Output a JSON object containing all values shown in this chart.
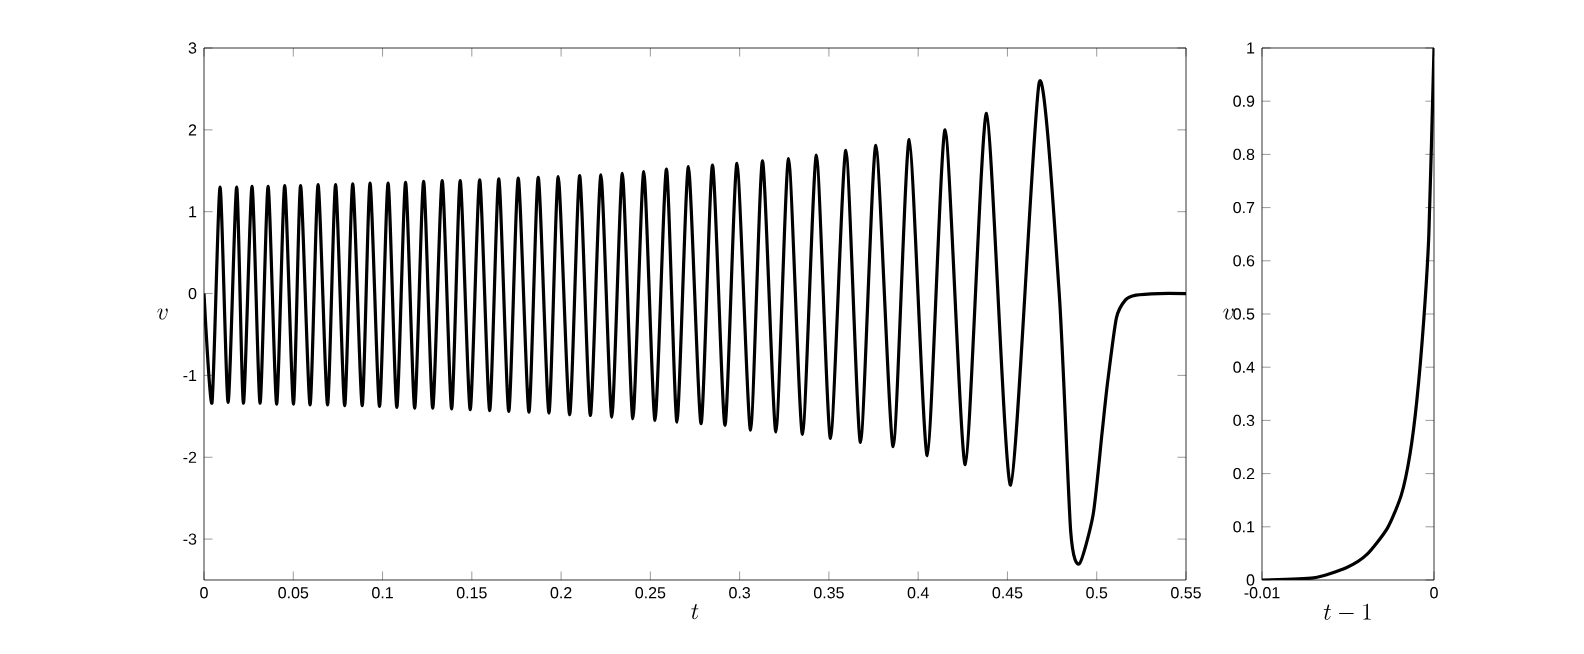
{
  "chart_data": [
    {
      "type": "line",
      "xlabel": "t",
      "ylabel": "v",
      "color": "#000000",
      "xlim": [
        0,
        0.55
      ],
      "ylim": [
        -3.5,
        3
      ],
      "xticks": [
        0,
        0.05,
        0.1,
        0.15,
        0.2,
        0.25,
        0.3,
        0.35,
        0.4,
        0.45,
        0.5,
        0.55
      ],
      "yticks": [
        -3,
        -2,
        -1,
        0,
        1,
        2,
        3
      ],
      "x": [
        0,
        0.0045,
        0.009,
        0.0135,
        0.0183,
        0.0221,
        0.0269,
        0.0314,
        0.0359,
        0.0407,
        0.0452,
        0.0501,
        0.0541,
        0.0594,
        0.0639,
        0.0692,
        0.0737,
        0.0788,
        0.0833,
        0.0886,
        0.093,
        0.0983,
        0.1031,
        0.108,
        0.1129,
        0.118,
        0.123,
        0.1281,
        0.1334,
        0.1387,
        0.1435,
        0.1491,
        0.1544,
        0.16,
        0.1651,
        0.1707,
        0.176,
        0.182,
        0.1872,
        0.1932,
        0.1984,
        0.2048,
        0.2104,
        0.2164,
        0.2223,
        0.2284,
        0.2343,
        0.2402,
        0.2463,
        0.2526,
        0.259,
        0.2649,
        0.2713,
        0.2784,
        0.2848,
        0.2918,
        0.2985,
        0.3061,
        0.3128,
        0.3203,
        0.3274,
        0.3352,
        0.343,
        0.3509,
        0.3595,
        0.3677,
        0.3763,
        0.386,
        0.395,
        0.4051,
        0.4151,
        0.4264,
        0.4383,
        0.4518,
        0.4678,
        0.479,
        0.4854,
        0.4903,
        0.498,
        0.503,
        0.506,
        0.511,
        0.516,
        0.522,
        0.535,
        0.55
      ],
      "values": [
        0,
        -1.33,
        1.3,
        -1.33,
        1.3,
        -1.34,
        1.31,
        -1.34,
        1.31,
        -1.35,
        1.32,
        -1.35,
        1.32,
        -1.36,
        1.33,
        -1.36,
        1.33,
        -1.37,
        1.34,
        -1.37,
        1.35,
        -1.38,
        1.35,
        -1.39,
        1.36,
        -1.4,
        1.37,
        -1.4,
        1.38,
        -1.41,
        1.38,
        -1.42,
        1.39,
        -1.43,
        1.4,
        -1.44,
        1.41,
        -1.45,
        1.42,
        -1.46,
        1.43,
        -1.48,
        1.44,
        -1.49,
        1.45,
        -1.51,
        1.47,
        -1.53,
        1.49,
        -1.55,
        1.52,
        -1.57,
        1.55,
        -1.59,
        1.57,
        -1.61,
        1.59,
        -1.67,
        1.62,
        -1.69,
        1.65,
        -1.72,
        1.69,
        -1.77,
        1.75,
        -1.82,
        1.81,
        -1.87,
        1.88,
        -1.98,
        2.0,
        -2.09,
        2.2,
        -2.34,
        2.58,
        0,
        -2.9,
        -3.3,
        -2.7,
        -1.7,
        -1.1,
        -0.3,
        -0.08,
        -0.02,
        0,
        0
      ]
    },
    {
      "type": "line",
      "xlabel": "t - 1",
      "ylabel": "v",
      "color": "#000000",
      "xlim": [
        -0.01,
        0
      ],
      "ylim": [
        0,
        1
      ],
      "xticks": [
        -0.01,
        0
      ],
      "yticks": [
        0,
        0.1,
        0.2,
        0.3,
        0.4,
        0.5,
        0.6,
        0.7,
        0.8,
        0.9,
        1
      ],
      "x": [
        -0.01,
        -0.007,
        -0.0051,
        -0.0039,
        -0.0027,
        -0.0019,
        -0.0014,
        -0.001,
        -0.0006,
        -0.0003,
        0
      ],
      "values": [
        0,
        0.004,
        0.023,
        0.048,
        0.098,
        0.16,
        0.236,
        0.337,
        0.487,
        0.65,
        1
      ]
    }
  ]
}
